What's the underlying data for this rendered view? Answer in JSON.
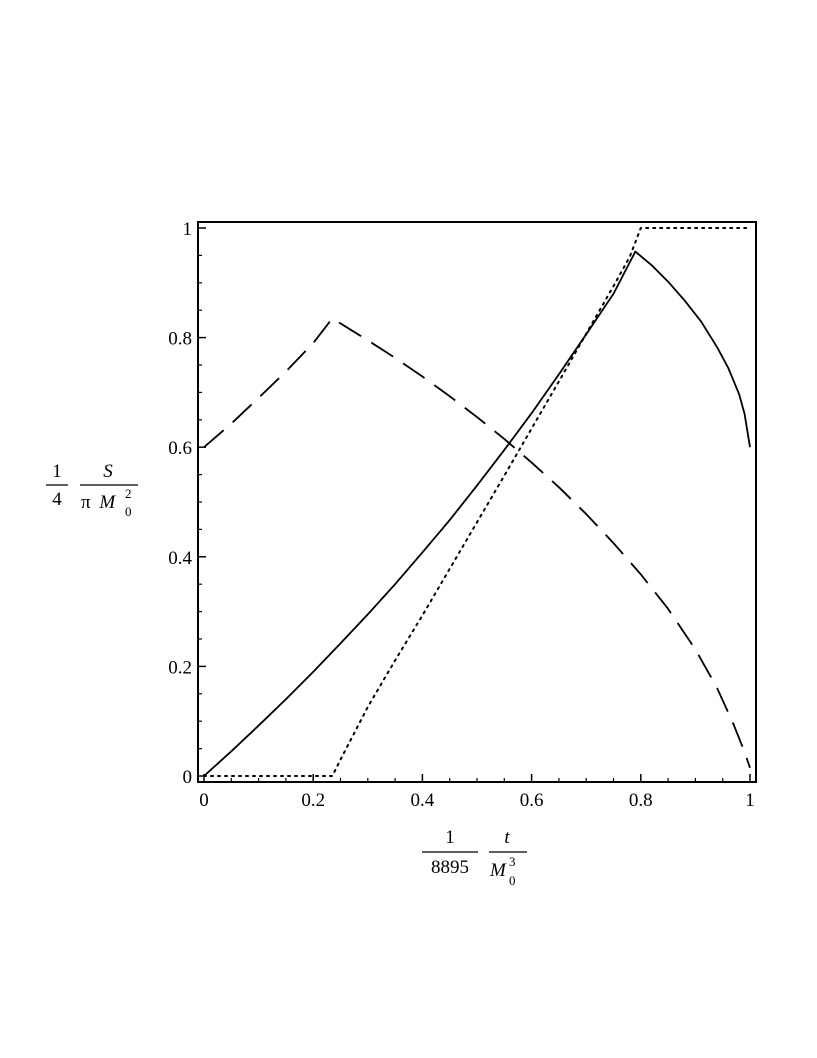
{
  "chart_data": {
    "type": "line",
    "title": "",
    "xlabel": {
      "factor_num": "1",
      "factor_den": "8895",
      "var_num": "t",
      "var_den_base": "M",
      "var_den_sub": "0",
      "var_den_sup": "3"
    },
    "ylabel": {
      "factor_num": "1",
      "factor_den": "4",
      "var_num": "S",
      "var_den_pi": "π",
      "var_den_base": "M",
      "var_den_sub": "0",
      "var_den_sup": "2"
    },
    "xlim": [
      0,
      1
    ],
    "ylim": [
      0,
      1
    ],
    "xticks": [
      "0",
      "0.2",
      "0.4",
      "0.6",
      "0.8",
      "1"
    ],
    "yticks": [
      "0",
      "0.2",
      "0.4",
      "0.6",
      "0.8",
      "1"
    ],
    "grid": false,
    "series": [
      {
        "style": "solid",
        "x": [
          0,
          0.05,
          0.1,
          0.15,
          0.2,
          0.25,
          0.3,
          0.35,
          0.4,
          0.45,
          0.5,
          0.55,
          0.6,
          0.65,
          0.7,
          0.75,
          0.79,
          0.82,
          0.85,
          0.88,
          0.91,
          0.94,
          0.96,
          0.98,
          0.99,
          1.0
        ],
        "y": [
          0,
          0.045,
          0.092,
          0.14,
          0.19,
          0.242,
          0.295,
          0.35,
          0.408,
          0.467,
          0.53,
          0.595,
          0.662,
          0.733,
          0.806,
          0.88,
          0.957,
          0.932,
          0.902,
          0.868,
          0.83,
          0.782,
          0.745,
          0.697,
          0.661,
          0.6
        ]
      },
      {
        "style": "dashed",
        "x": [
          0,
          0.05,
          0.1,
          0.15,
          0.2,
          0.235,
          0.3,
          0.35,
          0.4,
          0.45,
          0.5,
          0.55,
          0.6,
          0.65,
          0.7,
          0.75,
          0.8,
          0.85,
          0.9,
          0.94,
          0.97,
          0.99,
          1.0
        ],
        "y": [
          0.6,
          0.643,
          0.69,
          0.738,
          0.79,
          0.835,
          0.795,
          0.763,
          0.729,
          0.693,
          0.655,
          0.615,
          0.572,
          0.527,
          0.478,
          0.425,
          0.368,
          0.305,
          0.231,
          0.16,
          0.094,
          0.044,
          0.015
        ]
      },
      {
        "style": "dotted",
        "x": [
          0,
          0.235,
          0.25,
          0.3,
          0.35,
          0.4,
          0.45,
          0.5,
          0.55,
          0.6,
          0.65,
          0.7,
          0.75,
          0.78,
          0.8,
          1.0
        ],
        "y": [
          0,
          0,
          0.03,
          0.126,
          0.211,
          0.293,
          0.378,
          0.463,
          0.548,
          0.634,
          0.72,
          0.807,
          0.894,
          0.948,
          1.0,
          1.0
        ]
      }
    ]
  }
}
